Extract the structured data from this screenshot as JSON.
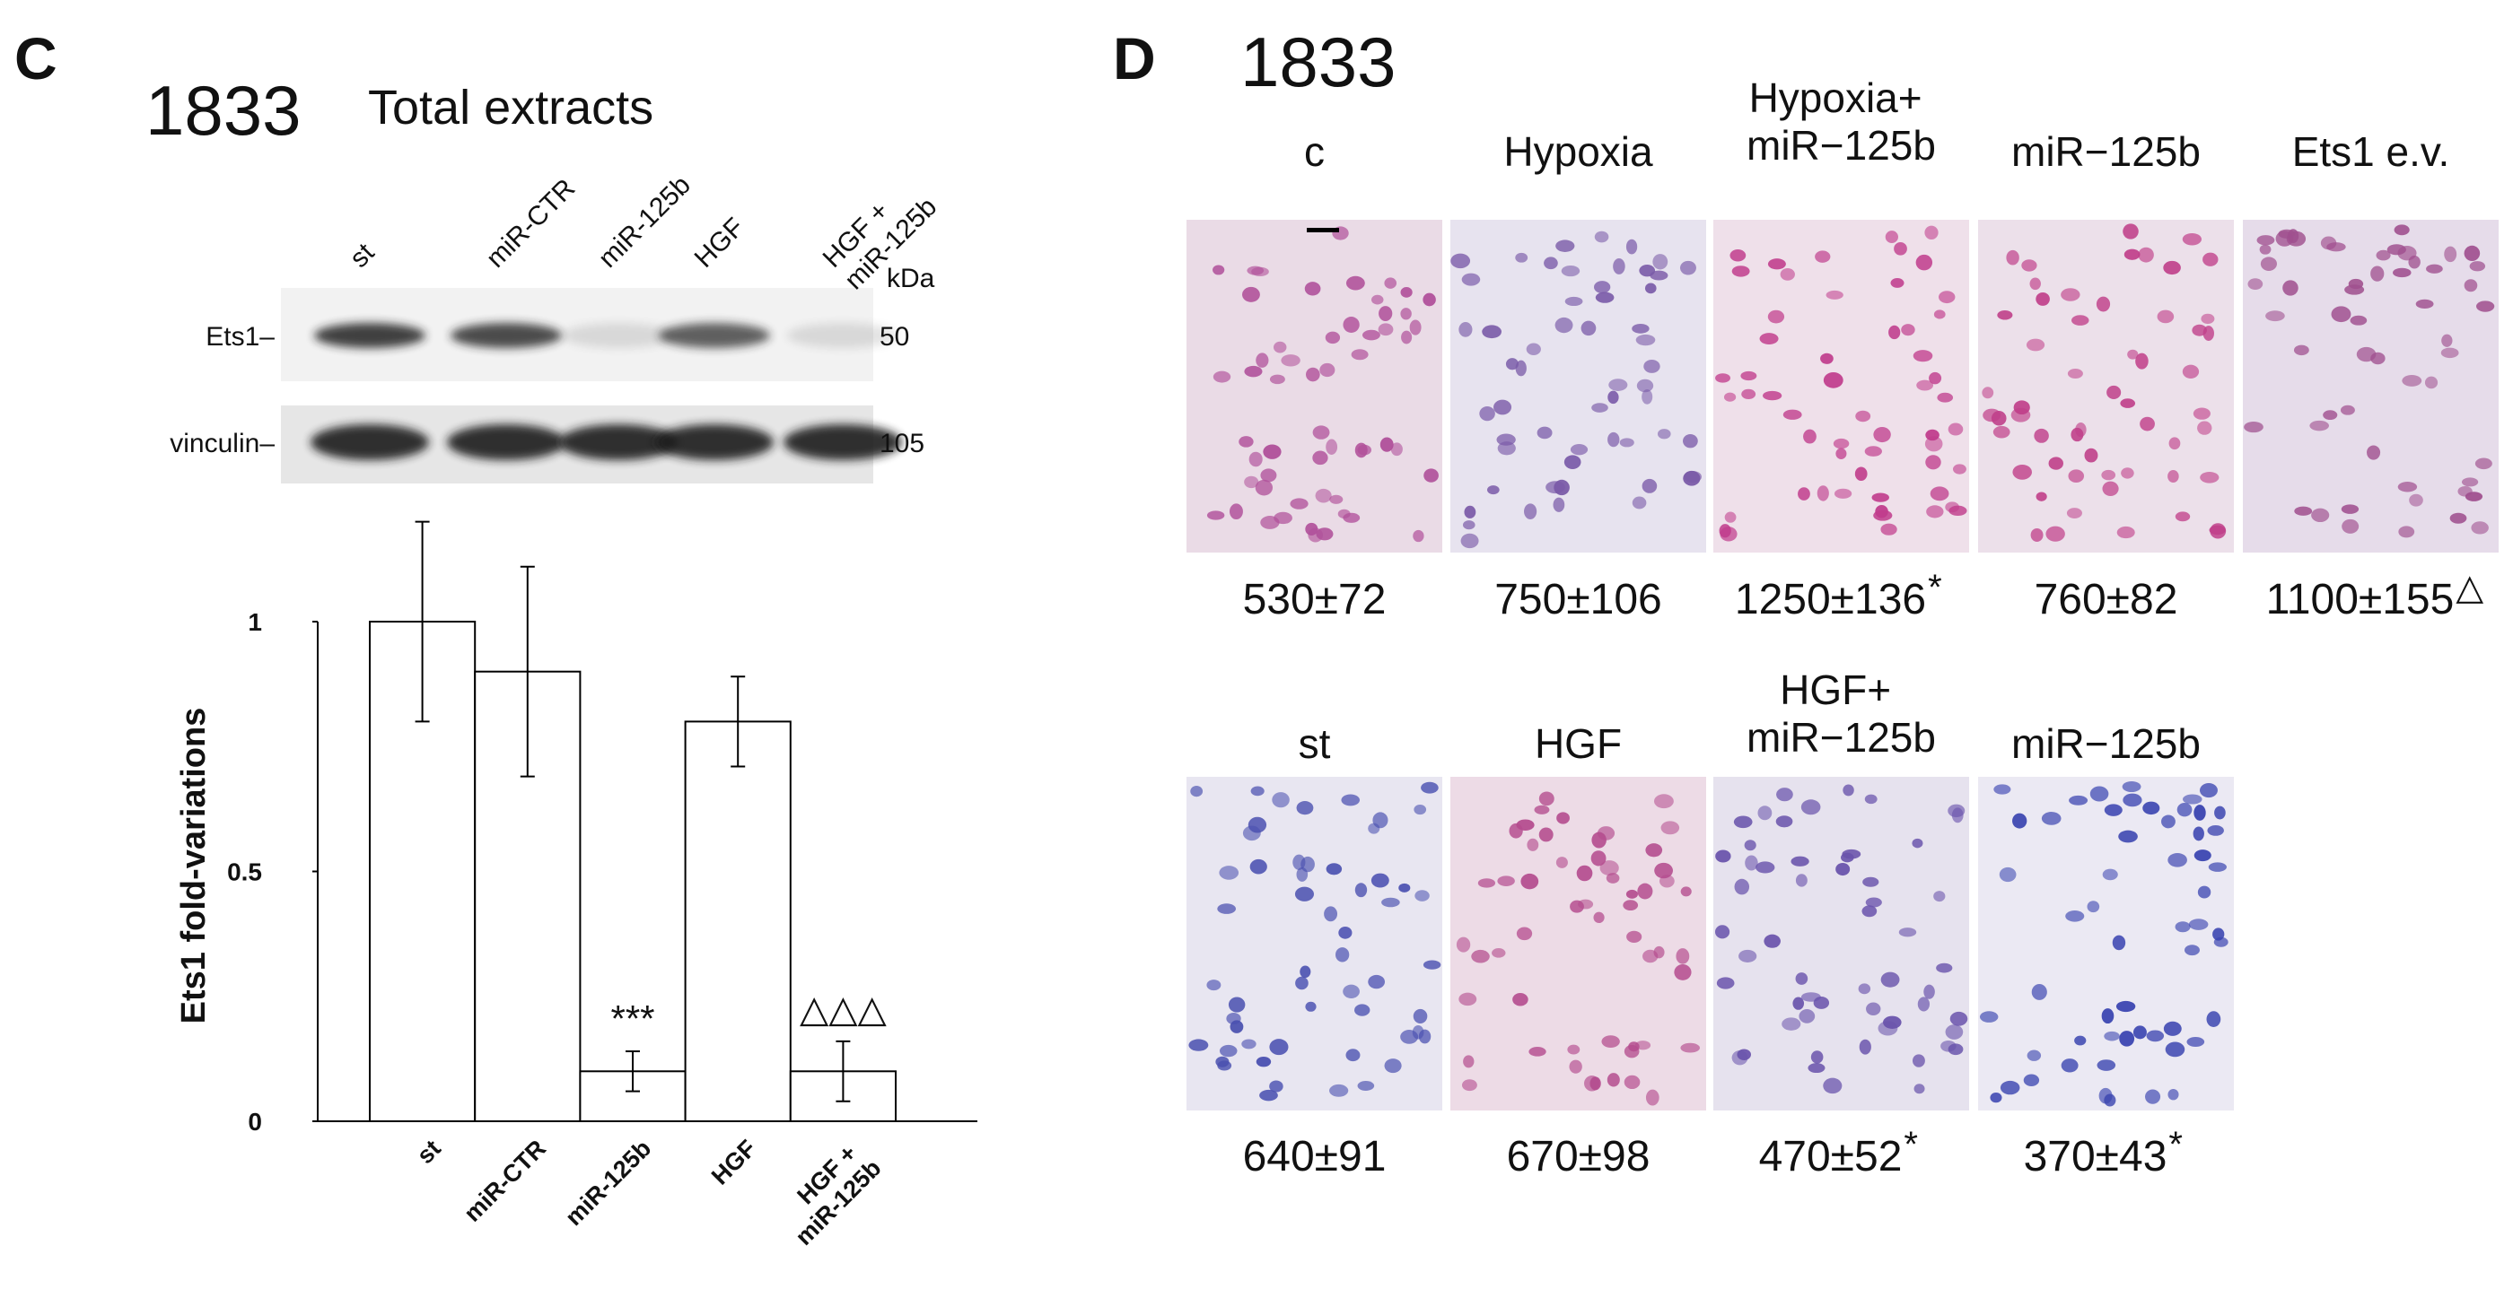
{
  "panel_c": {
    "label": "C",
    "cell_line": "1833",
    "title": "Total extracts",
    "lanes": [
      "st",
      "miR-CTR",
      "miR-125b",
      "HGF",
      "HGF +\nmiR-125b"
    ],
    "kda": "kDa",
    "blots": [
      {
        "name": "Ets1–",
        "mw": "50"
      },
      {
        "name": "vinculin–",
        "mw": "105"
      }
    ]
  },
  "chart_data": {
    "type": "bar",
    "ylabel": "Ets1  fold-variations",
    "categories": [
      "st",
      "miR-CTR",
      "miR-125b",
      "HGF",
      "HGF +\nmiR-125b"
    ],
    "values": [
      1.0,
      0.9,
      0.1,
      0.8,
      0.1
    ],
    "errors": [
      0.2,
      0.21,
      0.04,
      0.09,
      0.06
    ],
    "annotations": [
      null,
      null,
      "***",
      null,
      "△△△"
    ],
    "color": "#ffffff",
    "ylim": [
      0,
      1
    ],
    "yticks": [
      0,
      0.5,
      1
    ]
  },
  "panel_d": {
    "label": "D",
    "cell_line": "1833",
    "rows": [
      [
        {
          "label": "c",
          "count": "530±72"
        },
        {
          "label": "Hypoxia",
          "count": "750±106"
        },
        {
          "label": "Hypoxia+\nmiR−125b",
          "count": "1250±136",
          "mark": "*"
        },
        {
          "label": "miR−125b",
          "count": "760±82"
        },
        {
          "label": "Ets1 e.v.",
          "count": "1100±155",
          "mark": "△"
        }
      ],
      [
        {
          "label": "st",
          "count": "640±91"
        },
        {
          "label": "HGF",
          "count": "670±98"
        },
        {
          "label": "HGF+\nmiR−125b",
          "count": "470±52",
          "mark": "*"
        },
        {
          "label": "miR−125b",
          "count": "370±43",
          "mark": "*"
        }
      ]
    ]
  }
}
